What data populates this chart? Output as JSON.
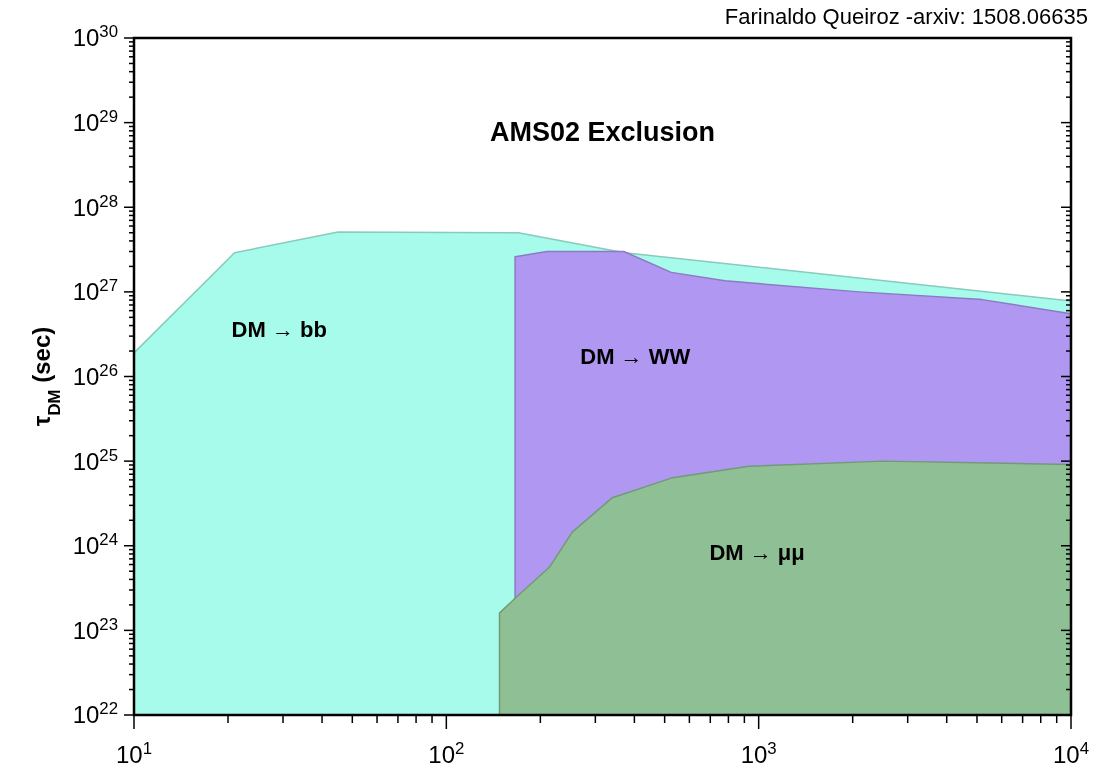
{
  "chart_data": {
    "type": "area",
    "title": "AMS02 Exclusion",
    "ylabel": "τ$_{DM}$ (sec)",
    "log": "xy",
    "grid": false,
    "xlim": [
      10,
      10000
    ],
    "ylim": [
      1e+22,
      1e+30
    ],
    "xticks": [
      {
        "value": 10,
        "label": "10$^{1}$"
      },
      {
        "value": 20,
        "label": null
      },
      {
        "value": 30,
        "label": null
      },
      {
        "value": 40,
        "label": null
      },
      {
        "value": 50,
        "label": null
      },
      {
        "value": 60,
        "label": null
      },
      {
        "value": 70,
        "label": null
      },
      {
        "value": 80,
        "label": null
      },
      {
        "value": 90,
        "label": null
      },
      {
        "value": 100,
        "label": "10$^{2}$"
      },
      {
        "value": 200,
        "label": null
      },
      {
        "value": 300,
        "label": null
      },
      {
        "value": 400,
        "label": null
      },
      {
        "value": 500,
        "label": null
      },
      {
        "value": 600,
        "label": null
      },
      {
        "value": 700,
        "label": null
      },
      {
        "value": 800,
        "label": null
      },
      {
        "value": 900,
        "label": null
      },
      {
        "value": 1000,
        "label": "10$^{3}$"
      },
      {
        "value": 2000,
        "label": null
      },
      {
        "value": 3000,
        "label": null
      },
      {
        "value": 4000,
        "label": null
      },
      {
        "value": 5000,
        "label": null
      },
      {
        "value": 6000,
        "label": null
      },
      {
        "value": 7000,
        "label": null
      },
      {
        "value": 8000,
        "label": null
      },
      {
        "value": 9000,
        "label": null
      },
      {
        "value": 10000,
        "label": "10$^{4}$"
      }
    ],
    "yticks": [
      {
        "value": 1e+22,
        "label": "10$^{22}$"
      },
      {
        "value": 2e+22,
        "label": null
      },
      {
        "value": 3e+22,
        "label": null
      },
      {
        "value": 4e+22,
        "label": null
      },
      {
        "value": 5e+22,
        "label": null
      },
      {
        "value": 6e+22,
        "label": null
      },
      {
        "value": 7e+22,
        "label": null
      },
      {
        "value": 8e+22,
        "label": null
      },
      {
        "value": 9e+22,
        "label": null
      },
      {
        "value": 1e+23,
        "label": "10$^{23}$"
      },
      {
        "value": 2e+23,
        "label": null
      },
      {
        "value": 3e+23,
        "label": null
      },
      {
        "value": 4e+23,
        "label": null
      },
      {
        "value": 5e+23,
        "label": null
      },
      {
        "value": 6e+23,
        "label": null
      },
      {
        "value": 7e+23,
        "label": null
      },
      {
        "value": 8e+23,
        "label": null
      },
      {
        "value": 9e+23,
        "label": null
      },
      {
        "value": 1e+24,
        "label": "10$^{24}$"
      },
      {
        "value": 2e+24,
        "label": null
      },
      {
        "value": 3e+24,
        "label": null
      },
      {
        "value": 4e+24,
        "label": null
      },
      {
        "value": 5e+24,
        "label": null
      },
      {
        "value": 6e+24,
        "label": null
      },
      {
        "value": 7e+24,
        "label": null
      },
      {
        "value": 8e+24,
        "label": null
      },
      {
        "value": 9e+24,
        "label": null
      },
      {
        "value": 1e+25,
        "label": "10$^{25}$"
      },
      {
        "value": 2e+25,
        "label": null
      },
      {
        "value": 3e+25,
        "label": null
      },
      {
        "value": 4e+25,
        "label": null
      },
      {
        "value": 5e+25,
        "label": null
      },
      {
        "value": 6e+25,
        "label": null
      },
      {
        "value": 7e+25,
        "label": null
      },
      {
        "value": 8e+25,
        "label": null
      },
      {
        "value": 9e+25,
        "label": null
      },
      {
        "value": 1e+26,
        "label": "10$^{26}$"
      },
      {
        "value": 2e+26,
        "label": null
      },
      {
        "value": 3e+26,
        "label": null
      },
      {
        "value": 4e+26,
        "label": null
      },
      {
        "value": 5e+26,
        "label": null
      },
      {
        "value": 6e+26,
        "label": null
      },
      {
        "value": 7e+26,
        "label": null
      },
      {
        "value": 8e+26,
        "label": null
      },
      {
        "value": 9e+26,
        "label": null
      },
      {
        "value": 1e+27,
        "label": "10$^{27}$"
      },
      {
        "value": 2e+27,
        "label": null
      },
      {
        "value": 3e+27,
        "label": null
      },
      {
        "value": 4e+27,
        "label": null
      },
      {
        "value": 5e+27,
        "label": null
      },
      {
        "value": 6e+27,
        "label": null
      },
      {
        "value": 7e+27,
        "label": null
      },
      {
        "value": 8e+27,
        "label": null
      },
      {
        "value": 9e+27,
        "label": null
      },
      {
        "value": 1e+28,
        "label": "10$^{28}$"
      },
      {
        "value": 2e+28,
        "label": null
      },
      {
        "value": 3e+28,
        "label": null
      },
      {
        "value": 4e+28,
        "label": null
      },
      {
        "value": 5e+28,
        "label": null
      },
      {
        "value": 6e+28,
        "label": null
      },
      {
        "value": 7e+28,
        "label": null
      },
      {
        "value": 8e+28,
        "label": null
      },
      {
        "value": 9e+28,
        "label": null
      },
      {
        "value": 1e+29,
        "label": "10$^{29}$"
      },
      {
        "value": 2e+29,
        "label": null
      },
      {
        "value": 3e+29,
        "label": null
      },
      {
        "value": 4e+29,
        "label": null
      },
      {
        "value": 5e+29,
        "label": null
      },
      {
        "value": 6e+29,
        "label": null
      },
      {
        "value": 7e+29,
        "label": null
      },
      {
        "value": 8e+29,
        "label": null
      },
      {
        "value": 9e+29,
        "label": null
      },
      {
        "value": 1e+30,
        "label": "10$^{30}$"
      }
    ],
    "series": [
      {
        "name": "DM → bb",
        "color": "#a6fbea",
        "x": [
          10,
          21,
          45,
          170,
          372,
          10000
        ],
        "values": [
          1.9e+26,
          2.9e+27,
          5.1e+27,
          5e+27,
          2.9e+27,
          7.8e+26
        ]
      },
      {
        "name": "DM → WW",
        "color": "#af97f2",
        "x": [
          166,
          166,
          210,
          370,
          525,
          780,
          2100,
          5200,
          10000
        ],
        "values": [
          1e+22,
          2.6e+27,
          3e+27,
          3e+27,
          1.7e+27,
          1.35e+27,
          1e+27,
          8.1e+26,
          5.5e+26
        ]
      },
      {
        "name": "DM → μμ",
        "color": "#8fbf94",
        "x": [
          148,
          148,
          166,
          214,
          253,
          340,
          525,
          930,
          2500,
          10000
        ],
        "values": [
          1e+22,
          1.6e+23,
          2.4e+23,
          5.6e+23,
          1.45e+24,
          3.7e+24,
          6.3e+24,
          8.7e+24,
          1e+25,
          9.1e+24
        ]
      }
    ],
    "annotations": [
      "Farinaldo Queiroz -arxiv: 1508.06635"
    ]
  }
}
